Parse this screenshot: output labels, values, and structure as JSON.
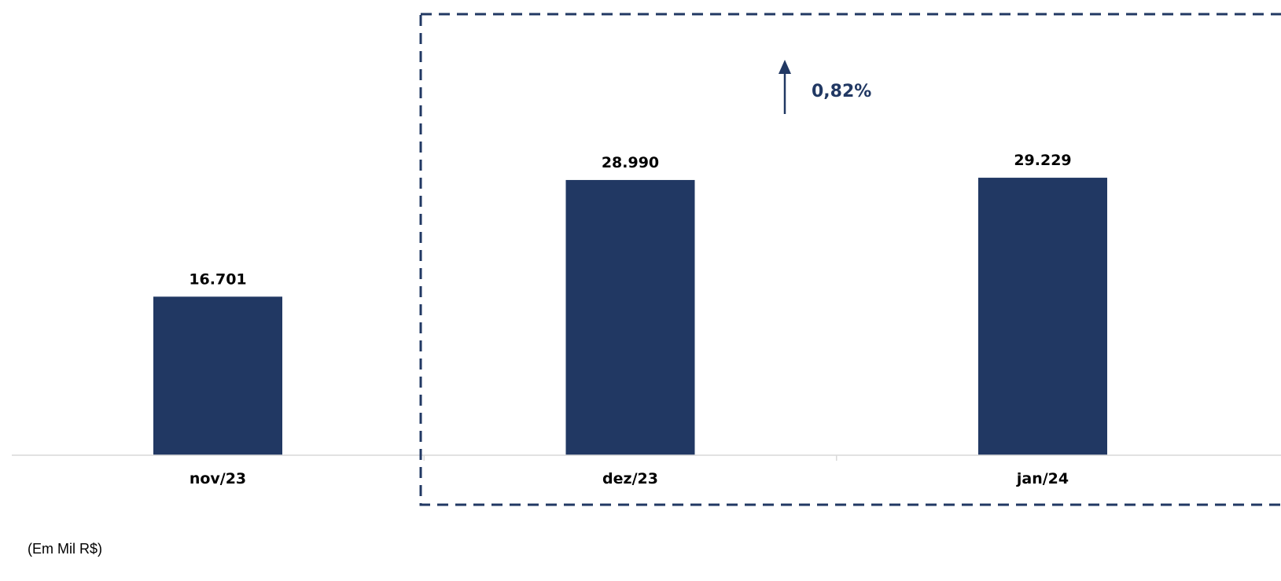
{
  "colors": {
    "bar": "#213863",
    "accent": "#213863",
    "axis": "#d9d9d9"
  },
  "chart_data": {
    "type": "bar",
    "categories": [
      "nov/23",
      "dez/23",
      "jan/24"
    ],
    "values": [
      16701,
      28990,
      29229
    ],
    "value_labels": [
      "16.701",
      "28.990",
      "29.229"
    ],
    "ylim": [
      0,
      40000
    ],
    "grid": false,
    "highlight": {
      "categories": [
        "dez/23",
        "jan/24"
      ],
      "growth_label": "0,82%",
      "direction": "up"
    },
    "unit_note": "(Em Mil R$)"
  }
}
